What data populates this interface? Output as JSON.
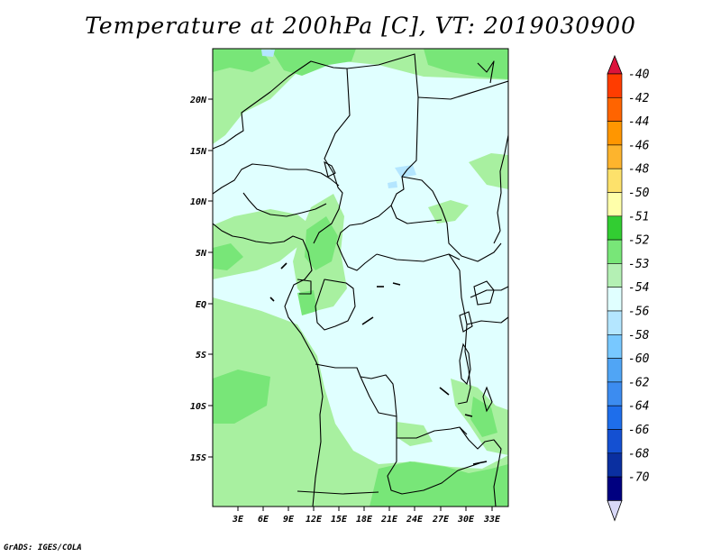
{
  "title": "Temperature at 200hPa [C], VT: 2019030900",
  "credit": "GrADS: IGES/COLA",
  "map": {
    "lat_labels": [
      "20N",
      "15N",
      "10N",
      "5N",
      "EQ",
      "5S",
      "10S",
      "15S"
    ],
    "lon_labels": [
      "3E",
      "6E",
      "9E",
      "12E",
      "15E",
      "18E",
      "21E",
      "24E",
      "27E",
      "30E",
      "33E"
    ],
    "background_color": "#e0ffff"
  },
  "colorbar": {
    "levels": [
      "-40",
      "-42",
      "-44",
      "-46",
      "-48",
      "-50",
      "-51",
      "-52",
      "-53",
      "-54",
      "-56",
      "-58",
      "-60",
      "-62",
      "-64",
      "-66",
      "-68",
      "-70"
    ],
    "colors": [
      "#dc143c",
      "#ff3c00",
      "#ff6400",
      "#ff9600",
      "#fdb42d",
      "#fde16b",
      "#ffffaa",
      "#32cd32",
      "#78e678",
      "#b4f0b4",
      "#e0ffff",
      "#b4e6ff",
      "#78c8ff",
      "#50a5f5",
      "#3c8cf0",
      "#1e6eeb",
      "#1450d2",
      "#0a2fa0",
      "#000080",
      "#d8d8f8"
    ]
  }
}
